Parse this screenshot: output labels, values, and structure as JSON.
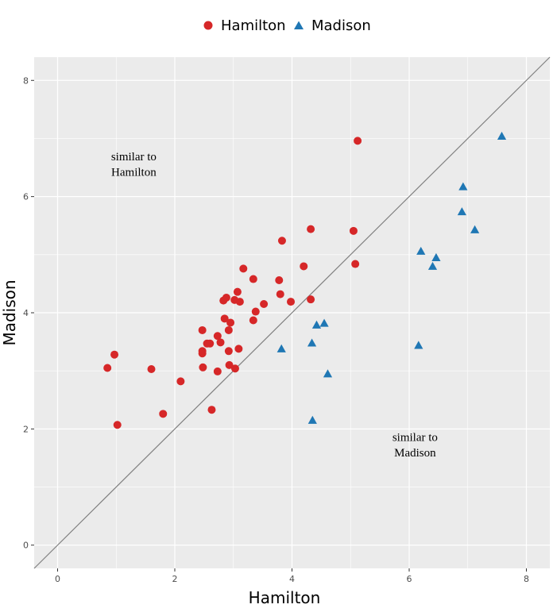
{
  "chart_data": {
    "type": "scatter",
    "xlabel": "Hamilton",
    "ylabel": "Madison",
    "xlim": [
      -0.4,
      8.4
    ],
    "ylim": [
      -0.4,
      8.4
    ],
    "x_ticks": [
      "0",
      "2",
      "4",
      "6",
      "8"
    ],
    "y_ticks": [
      "0",
      "2",
      "4",
      "6",
      "8"
    ],
    "grid": true,
    "legend_position": "top",
    "reference_line": {
      "slope": 1,
      "intercept": 0,
      "color": "#808080"
    },
    "annotations": [
      {
        "lines": [
          "similar to",
          "Hamilton"
        ],
        "x": 1.3,
        "y": 6.55
      },
      {
        "lines": [
          "similar to",
          "Madison"
        ],
        "x": 6.1,
        "y": 1.72
      }
    ],
    "series": [
      {
        "name": "Hamilton",
        "marker": "circle",
        "color": "#d62728",
        "points": [
          [
            0.85,
            3.05
          ],
          [
            0.97,
            3.28
          ],
          [
            1.02,
            2.07
          ],
          [
            1.6,
            3.03
          ],
          [
            1.8,
            2.26
          ],
          [
            2.1,
            2.82
          ],
          [
            2.47,
            3.7
          ],
          [
            2.47,
            3.34
          ],
          [
            2.47,
            3.3
          ],
          [
            2.48,
            3.06
          ],
          [
            2.55,
            3.47
          ],
          [
            2.6,
            3.47
          ],
          [
            2.63,
            2.33
          ],
          [
            2.73,
            3.6
          ],
          [
            2.73,
            2.99
          ],
          [
            2.78,
            3.49
          ],
          [
            2.83,
            4.21
          ],
          [
            2.85,
            3.9
          ],
          [
            2.88,
            4.26
          ],
          [
            2.92,
            3.7
          ],
          [
            2.92,
            3.34
          ],
          [
            2.93,
            3.1
          ],
          [
            2.95,
            3.83
          ],
          [
            3.02,
            4.22
          ],
          [
            3.03,
            3.04
          ],
          [
            3.07,
            4.36
          ],
          [
            3.09,
            3.38
          ],
          [
            3.11,
            4.19
          ],
          [
            3.17,
            4.76
          ],
          [
            3.34,
            4.58
          ],
          [
            3.34,
            3.87
          ],
          [
            3.38,
            4.02
          ],
          [
            3.52,
            4.15
          ],
          [
            3.78,
            4.56
          ],
          [
            3.8,
            4.32
          ],
          [
            3.83,
            5.24
          ],
          [
            3.98,
            4.19
          ],
          [
            4.2,
            4.8
          ],
          [
            4.32,
            4.23
          ],
          [
            4.32,
            5.44
          ],
          [
            5.05,
            5.41
          ],
          [
            5.08,
            4.84
          ],
          [
            5.12,
            6.96
          ]
        ]
      },
      {
        "name": "Madison",
        "marker": "triangle",
        "color": "#1f77b4",
        "points": [
          [
            3.82,
            3.38
          ],
          [
            4.34,
            3.48
          ],
          [
            4.35,
            2.15
          ],
          [
            4.42,
            3.79
          ],
          [
            4.55,
            3.82
          ],
          [
            4.61,
            2.95
          ],
          [
            6.16,
            3.44
          ],
          [
            6.2,
            5.06
          ],
          [
            6.4,
            4.8
          ],
          [
            6.46,
            4.95
          ],
          [
            6.9,
            5.74
          ],
          [
            6.92,
            6.17
          ],
          [
            7.12,
            5.43
          ],
          [
            7.58,
            7.04
          ]
        ]
      }
    ]
  }
}
